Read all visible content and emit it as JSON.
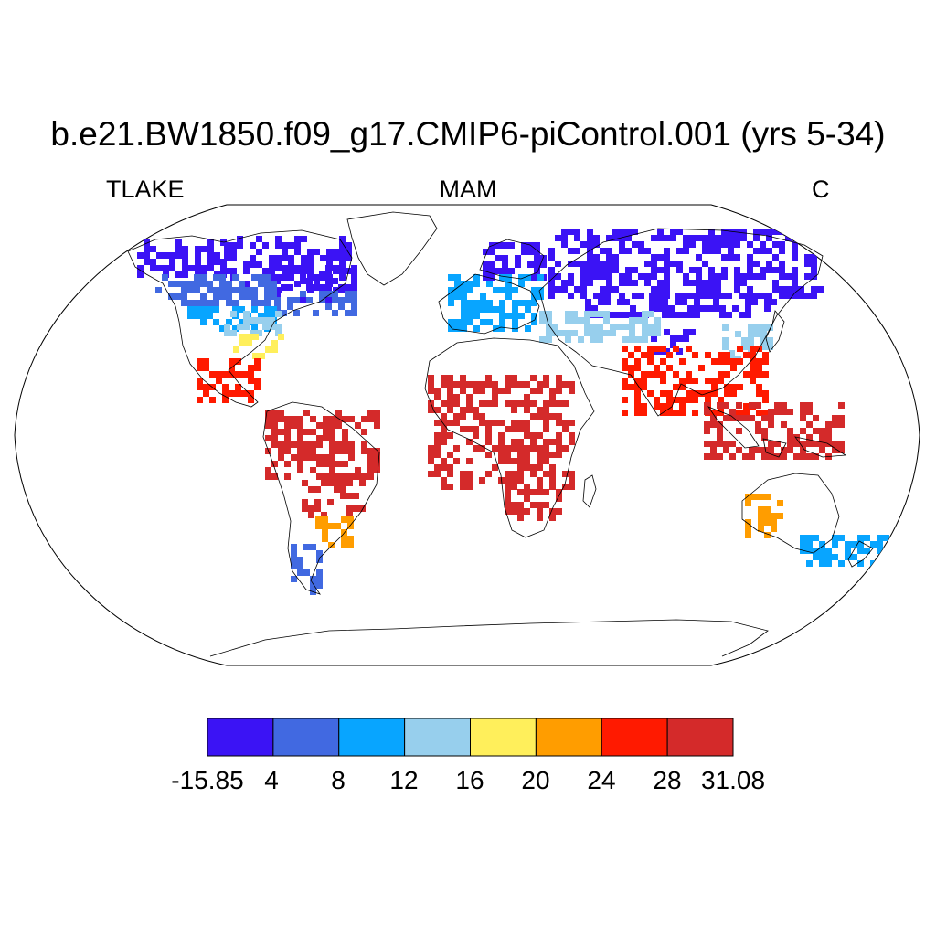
{
  "title": "b.e21.BW1850.f09_g17.CMIP6-piControl.001 (yrs 5-34)",
  "subtitle_left": "TLAKE",
  "subtitle_center": "MAM",
  "subtitle_right": "C",
  "projection": "Robinson",
  "colorbar": {
    "colors": [
      "#3b13f5",
      "#4169e1",
      "#08a5ff",
      "#97cfed",
      "#ffef5b",
      "#ff9d00",
      "#ff1a00",
      "#d42a2a"
    ],
    "labels": [
      "-15.85",
      "4",
      "8",
      "12",
      "16",
      "20",
      "24",
      "28",
      "31.08"
    ]
  },
  "regions": [
    {
      "name": "north-america-arctic",
      "color": "#3b13f5"
    },
    {
      "name": "canada-south",
      "color": "#4169e1"
    },
    {
      "name": "usa-north",
      "color": "#08a5ff"
    },
    {
      "name": "usa-mid",
      "color": "#97cfed"
    },
    {
      "name": "usa-south",
      "color": "#ffef5b"
    },
    {
      "name": "mexico-central-america",
      "color": "#ff1a00"
    },
    {
      "name": "amazon",
      "color": "#d42a2a"
    },
    {
      "name": "south-america-south",
      "color": "#ff9d00"
    },
    {
      "name": "patagonia",
      "color": "#4169e1"
    },
    {
      "name": "scandinavia",
      "color": "#3b13f5"
    },
    {
      "name": "europe",
      "color": "#08a5ff"
    },
    {
      "name": "siberia",
      "color": "#3b13f5"
    },
    {
      "name": "central-asia",
      "color": "#97cfed"
    },
    {
      "name": "africa",
      "color": "#d42a2a"
    },
    {
      "name": "india",
      "color": "#ff1a00"
    },
    {
      "name": "southeast-asia",
      "color": "#d42a2a"
    },
    {
      "name": "australia",
      "color": "#ff9d00"
    },
    {
      "name": "new-zealand",
      "color": "#08a5ff"
    }
  ]
}
